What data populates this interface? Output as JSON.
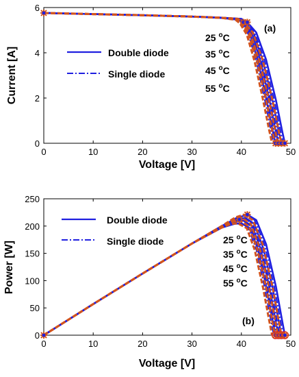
{
  "colors": {
    "double_diode": "#1f1fe0",
    "single_diode": "#1f1fe0",
    "model_curve": "#d2541e",
    "grid": "#d9d9d9"
  },
  "temperature_labels": [
    {
      "value": "25 ",
      "unit": "o",
      "suffix": "C"
    },
    {
      "value": "35 ",
      "unit": "o",
      "suffix": "C"
    },
    {
      "value": "45 ",
      "unit": "o",
      "suffix": "C"
    },
    {
      "value": "55 ",
      "unit": "o",
      "suffix": "C"
    }
  ],
  "chart_data": [
    {
      "type": "line",
      "panel_label": "(a)",
      "xlabel": "Voltage [V]",
      "ylabel": "Current [A]",
      "xlim": [
        0,
        50
      ],
      "ylim": [
        0,
        6
      ],
      "xticks": [
        "0",
        "10",
        "20",
        "30",
        "40",
        "50"
      ],
      "yticks": [
        "0",
        "2",
        "4",
        "6"
      ],
      "grid": false,
      "legend": {
        "placement": "center-left",
        "entries": [
          "Double diode",
          "Single diode"
        ]
      },
      "temperatures_C": [
        25,
        35,
        45,
        55
      ],
      "series": [
        {
          "name": "Double diode",
          "temperature": 25,
          "x": [
            0,
            10,
            20,
            30,
            36,
            40,
            41.2,
            43,
            45,
            47,
            48.2,
            48.8
          ],
          "y": [
            5.76,
            5.71,
            5.66,
            5.6,
            5.55,
            5.5,
            5.35,
            4.9,
            3.7,
            1.9,
            0.6,
            0
          ]
        },
        {
          "name": "Double diode",
          "temperature": 35,
          "x": [
            0,
            10,
            20,
            30,
            36,
            40,
            41,
            42.6,
            44.4,
            46.3,
            47.5,
            48.1
          ],
          "y": [
            5.76,
            5.71,
            5.66,
            5.6,
            5.55,
            5.5,
            5.3,
            4.8,
            3.6,
            1.9,
            0.6,
            0
          ]
        },
        {
          "name": "Double diode",
          "temperature": 45,
          "x": [
            0,
            10,
            20,
            30,
            36,
            39.8,
            40.7,
            42.2,
            43.9,
            45.7,
            46.9,
            47.5
          ],
          "y": [
            5.76,
            5.71,
            5.66,
            5.6,
            5.55,
            5.48,
            5.3,
            4.8,
            3.6,
            1.9,
            0.6,
            0
          ]
        },
        {
          "name": "Double diode",
          "temperature": 55,
          "x": [
            0,
            10,
            20,
            30,
            36,
            39.5,
            40.4,
            41.8,
            43.4,
            45.1,
            46.3,
            46.9
          ],
          "y": [
            5.76,
            5.71,
            5.66,
            5.6,
            5.54,
            5.46,
            5.3,
            4.8,
            3.6,
            1.9,
            0.6,
            0
          ]
        }
      ],
      "markers": [
        {
          "x": 0,
          "y": 5.76
        },
        {
          "x": 40.4,
          "y": 5.35
        },
        {
          "x": 41.2,
          "y": 5.35
        },
        {
          "x": 46.9,
          "y": 0
        },
        {
          "x": 47.5,
          "y": 0
        },
        {
          "x": 48.1,
          "y": 0
        },
        {
          "x": 48.8,
          "y": 0
        }
      ]
    },
    {
      "type": "line",
      "panel_label": "(b)",
      "xlabel": "Voltage [V]",
      "ylabel": "Power [W]",
      "xlim": [
        0,
        50
      ],
      "ylim": [
        0,
        250
      ],
      "xticks": [
        "0",
        "10",
        "20",
        "30",
        "40",
        "50"
      ],
      "yticks": [
        "0",
        "50",
        "100",
        "150",
        "200",
        "250"
      ],
      "grid": false,
      "legend": {
        "placement": "top-left",
        "entries": [
          "Double diode",
          "Single diode"
        ]
      },
      "temperatures_C": [
        25,
        35,
        45,
        55
      ],
      "series": [
        {
          "name": "Double diode",
          "temperature": 25,
          "x": [
            0,
            10,
            20,
            30,
            36,
            39.5,
            41.2,
            43,
            45,
            47,
            48.2,
            48.8
          ],
          "y": [
            0,
            57,
            113,
            168,
            200,
            216,
            221,
            211,
            167,
            89,
            29,
            0
          ]
        },
        {
          "name": "Double diode",
          "temperature": 35,
          "x": [
            0,
            10,
            20,
            30,
            36,
            39.2,
            40.8,
            42.6,
            44.4,
            46.3,
            47.5,
            48.1
          ],
          "y": [
            0,
            57,
            113,
            168,
            199,
            212,
            215,
            204,
            160,
            88,
            28,
            0
          ]
        },
        {
          "name": "Double diode",
          "temperature": 45,
          "x": [
            0,
            10,
            20,
            30,
            36,
            38.9,
            40.4,
            42.2,
            43.9,
            45.7,
            46.9,
            47.5
          ],
          "y": [
            0,
            57,
            113,
            168,
            198,
            208,
            210,
            200,
            158,
            87,
            28,
            0
          ]
        },
        {
          "name": "Double diode",
          "temperature": 55,
          "x": [
            0,
            10,
            20,
            30,
            36,
            38.6,
            40,
            41.8,
            43.4,
            45.1,
            46.3,
            46.9
          ],
          "y": [
            0,
            57,
            113,
            168,
            197,
            204,
            205,
            196,
            156,
            86,
            28,
            0
          ]
        }
      ],
      "markers": [
        {
          "x": 0,
          "y": 0
        },
        {
          "x": 39.6,
          "y": 212
        },
        {
          "x": 41.2,
          "y": 221
        },
        {
          "x": 46.9,
          "y": 0
        },
        {
          "x": 47.5,
          "y": 0
        },
        {
          "x": 48.1,
          "y": 0
        },
        {
          "x": 48.8,
          "y": 0
        }
      ]
    }
  ]
}
